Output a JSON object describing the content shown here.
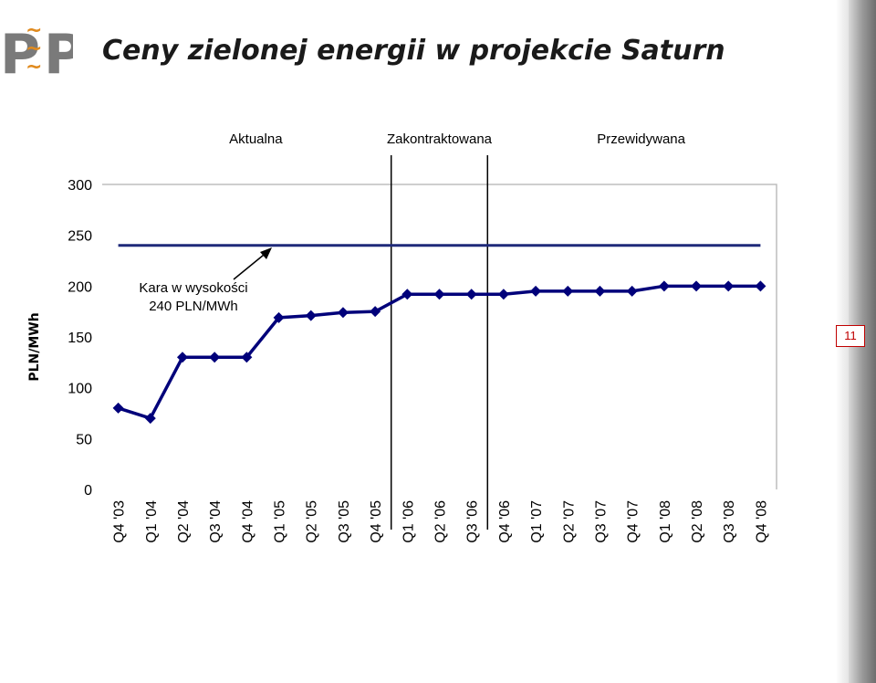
{
  "page": {
    "title": "Ceny zielonej energii w projekcie Saturn",
    "page_number": "11",
    "logo_letters": [
      "P",
      "P"
    ]
  },
  "chart_data": {
    "type": "line",
    "title": "",
    "xlabel": "",
    "ylabel": "PLN/MWh",
    "ylim": [
      0,
      300
    ],
    "yticks": [
      0,
      50,
      100,
      150,
      200,
      250,
      300
    ],
    "grid": false,
    "categories": [
      "Q4 '03",
      "Q1 '04",
      "Q2 '04",
      "Q3 '04",
      "Q4 '04",
      "Q1 '05",
      "Q2 '05",
      "Q3 '05",
      "Q4 '05",
      "Q1 '06",
      "Q2 '06",
      "Q3 '06",
      "Q4 '06",
      "Q1 '07",
      "Q2 '07",
      "Q3 '07",
      "Q4 '07",
      "Q1 '08",
      "Q2 '08",
      "Q3 '08",
      "Q4 '08"
    ],
    "series": [
      {
        "values": [
          80,
          70,
          130,
          130,
          130,
          169,
          171,
          174,
          175,
          192,
          192,
          192,
          192,
          195,
          195,
          195,
          195,
          200,
          200,
          200,
          200
        ],
        "color": "#00007a"
      }
    ],
    "reference_line": {
      "value": 240,
      "color": "#1f2a7a"
    },
    "annotation": {
      "line1": "Kara w wysokości",
      "line2": "240 PLN/MWh"
    },
    "periods": [
      "Aktualna",
      "Zakontraktowana",
      "Przewidywana"
    ],
    "period_dividers_after_category": [
      "Q4 '05",
      "Q3 '06"
    ]
  }
}
